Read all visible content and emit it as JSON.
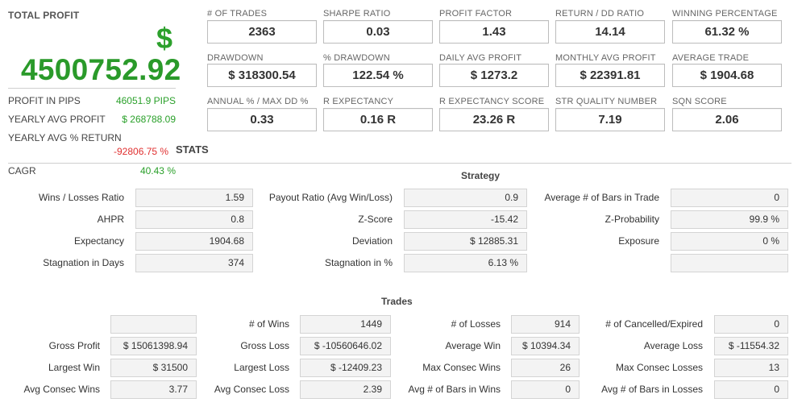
{
  "profit_panel": {
    "label": "TOTAL PROFIT",
    "currency_symbol": "$",
    "value": "4500752.92",
    "rows": [
      {
        "label": "PROFIT IN PIPS",
        "value": "46051.9 PIPS"
      },
      {
        "label": "YEARLY AVG PROFIT",
        "value": "$ 268788.09"
      },
      {
        "label": "YEARLY AVG % RETURN",
        "value": "-92806.75 %"
      },
      {
        "label": "CAGR",
        "value": "40.43 %"
      }
    ],
    "colors": {
      "positive": "#2aa02a",
      "negative": "#e03030"
    }
  },
  "stats_title": "STATS",
  "metrics": [
    {
      "label": "# OF TRADES",
      "value": "2363"
    },
    {
      "label": "SHARPE RATIO",
      "value": "0.03"
    },
    {
      "label": "PROFIT FACTOR",
      "value": "1.43"
    },
    {
      "label": "RETURN / DD RATIO",
      "value": "14.14"
    },
    {
      "label": "WINNING PERCENTAGE",
      "value": "61.32 %"
    },
    {
      "label": "DRAWDOWN",
      "value": "$ 318300.54"
    },
    {
      "label": "% DRAWDOWN",
      "value": "122.54 %"
    },
    {
      "label": "DAILY AVG PROFIT",
      "value": "$ 1273.2"
    },
    {
      "label": "MONTHLY AVG PROFIT",
      "value": "$ 22391.81"
    },
    {
      "label": "AVERAGE TRADE",
      "value": "$ 1904.68"
    },
    {
      "label": "ANNUAL % / MAX DD %",
      "value": "0.33"
    },
    {
      "label": "R EXPECTANCY",
      "value": "0.16 R"
    },
    {
      "label": "R EXPECTANCY SCORE",
      "value": "23.26 R"
    },
    {
      "label": "STR QUALITY NUMBER",
      "value": "7.19"
    },
    {
      "label": "SQN SCORE",
      "value": "2.06"
    }
  ],
  "strategy": {
    "title": "Strategy",
    "rows": [
      [
        {
          "label": "Wins / Losses Ratio",
          "value": "1.59"
        },
        {
          "label": "Payout Ratio (Avg Win/Loss)",
          "value": "0.9"
        },
        {
          "label": "Average # of Bars in Trade",
          "value": "0"
        }
      ],
      [
        {
          "label": "AHPR",
          "value": "0.8"
        },
        {
          "label": "Z-Score",
          "value": "-15.42"
        },
        {
          "label": "Z-Probability",
          "value": "99.9 %"
        }
      ],
      [
        {
          "label": "Expectancy",
          "value": "1904.68"
        },
        {
          "label": "Deviation",
          "value": "$ 12885.31"
        },
        {
          "label": "Exposure",
          "value": "0 %"
        }
      ],
      [
        {
          "label": "Stagnation in Days",
          "value": "374"
        },
        {
          "label": "Stagnation in %",
          "value": "6.13 %"
        },
        {
          "label": "",
          "value": ""
        }
      ]
    ]
  },
  "trades": {
    "title": "Trades",
    "rows": [
      [
        {
          "label": "",
          "value": ""
        },
        {
          "label": "# of Wins",
          "value": "1449"
        },
        {
          "label": "# of Losses",
          "value": "914"
        },
        {
          "label": "# of Cancelled/Expired",
          "value": "0"
        }
      ],
      [
        {
          "label": "Gross Profit",
          "value": "$ 15061398.94"
        },
        {
          "label": "Gross Loss",
          "value": "$ -10560646.02"
        },
        {
          "label": "Average Win",
          "value": "$ 10394.34"
        },
        {
          "label": "Average Loss",
          "value": "$ -11554.32"
        }
      ],
      [
        {
          "label": "Largest Win",
          "value": "$ 31500"
        },
        {
          "label": "Largest Loss",
          "value": "$ -12409.23"
        },
        {
          "label": "Max Consec Wins",
          "value": "26"
        },
        {
          "label": "Max Consec Losses",
          "value": "13"
        }
      ],
      [
        {
          "label": "Avg Consec Wins",
          "value": "3.77"
        },
        {
          "label": "Avg Consec Loss",
          "value": "2.39"
        },
        {
          "label": "Avg # of Bars in Wins",
          "value": "0"
        },
        {
          "label": "Avg # of Bars in Losses",
          "value": "0"
        }
      ]
    ]
  }
}
